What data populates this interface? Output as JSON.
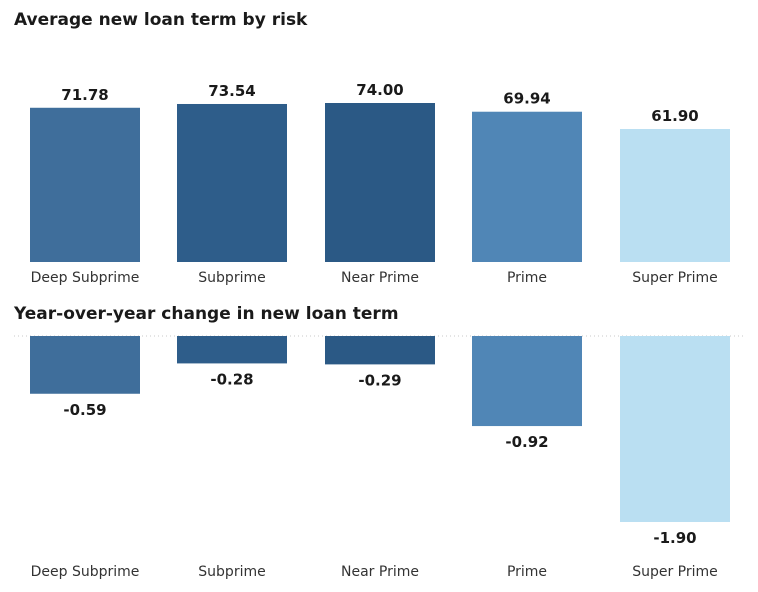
{
  "chart_data": [
    {
      "type": "bar",
      "title": "Average new loan term by risk",
      "categories": [
        "Deep Subprime",
        "Subprime",
        "Near Prime",
        "Prime",
        "Super Prime"
      ],
      "values": [
        71.78,
        73.54,
        74.0,
        69.94,
        61.9
      ],
      "value_labels": [
        "71.78",
        "73.54",
        "74.00",
        "69.94",
        "61.90"
      ],
      "colors": [
        "#3f6e9b",
        "#2e5d8a",
        "#2b5985",
        "#5086b6",
        "#badff2"
      ],
      "xlabel": "",
      "ylabel": "",
      "ylim": [
        0,
        74
      ],
      "grid": false,
      "legend": "none"
    },
    {
      "type": "bar",
      "title": "Year-over-year change in new loan term",
      "categories": [
        "Deep Subprime",
        "Subprime",
        "Near Prime",
        "Prime",
        "Super Prime"
      ],
      "values": [
        -0.59,
        -0.28,
        -0.29,
        -0.92,
        -1.9
      ],
      "value_labels": [
        "-0.59",
        "-0.28",
        "-0.29",
        "-0.92",
        "-1.90"
      ],
      "colors": [
        "#3f6e9b",
        "#2e5d8a",
        "#2b5985",
        "#5086b6",
        "#badff2"
      ],
      "xlabel": "",
      "ylabel": "",
      "ylim": [
        -1.9,
        0
      ],
      "grid": false,
      "zero_line": "dotted",
      "legend": "none"
    }
  ]
}
